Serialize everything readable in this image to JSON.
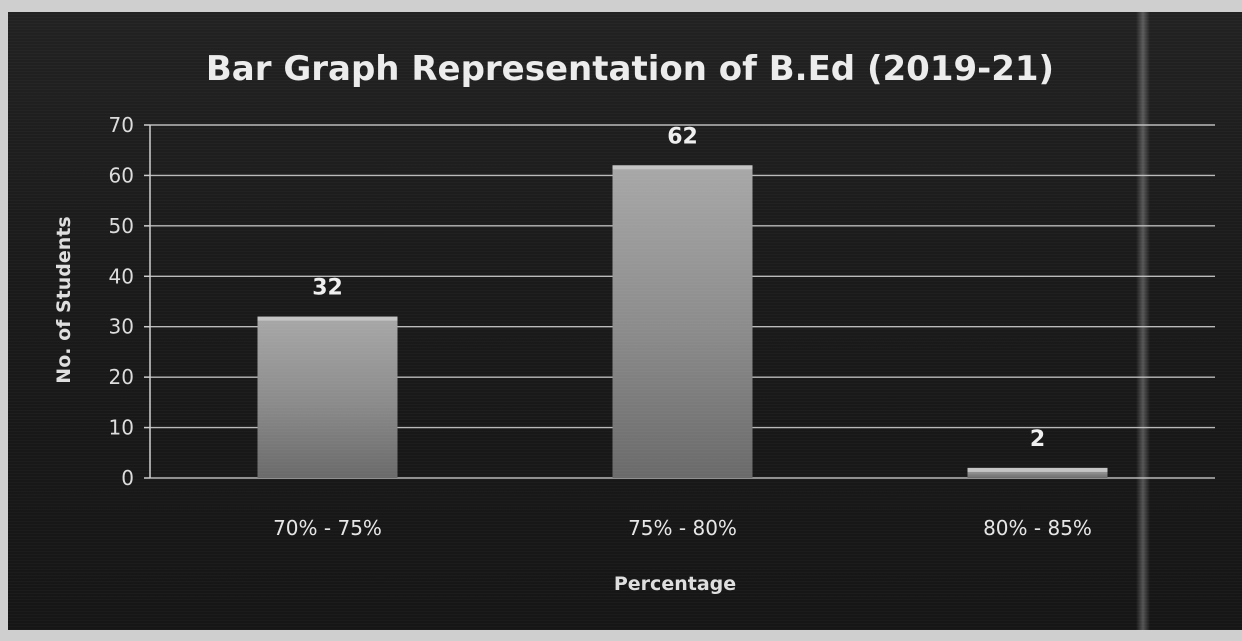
{
  "chart_data": {
    "type": "bar",
    "title": "Bar Graph Representation of B.Ed (2019-21)",
    "xlabel": "Percentage",
    "ylabel": "No. of Students",
    "categories": [
      "70% - 75%",
      "75% - 80%",
      "80% - 85%"
    ],
    "values": [
      32,
      62,
      2
    ],
    "data_labels": [
      "32",
      "62",
      "2"
    ],
    "ylim": [
      0,
      70
    ],
    "yticks": [
      0,
      10,
      20,
      30,
      40,
      50,
      60,
      70
    ],
    "grid": true,
    "legend": "none",
    "colors": {
      "background": "#1c1c1c",
      "bar": "#8c8c8c",
      "grid": "#d0d0d0",
      "text": "#e8e8e8"
    }
  }
}
